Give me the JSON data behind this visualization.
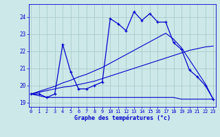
{
  "xlabel": "Graphe des températures (°c)",
  "bg_color": "#cce8e8",
  "grid_color": "#aacccc",
  "line_color": "#0000cc",
  "hours": [
    0,
    1,
    2,
    3,
    4,
    5,
    6,
    7,
    8,
    9,
    10,
    11,
    12,
    13,
    14,
    15,
    16,
    17,
    18,
    19,
    20,
    21,
    22,
    23
  ],
  "temp_actual": [
    19.5,
    19.5,
    19.3,
    19.5,
    22.4,
    20.8,
    19.8,
    19.8,
    20.0,
    20.2,
    23.9,
    23.6,
    23.2,
    24.3,
    23.8,
    24.2,
    23.7,
    23.7,
    22.5,
    22.1,
    20.9,
    20.5,
    20.0,
    19.2
  ],
  "temp_min": [
    19.5,
    19.4,
    19.3,
    19.3,
    19.3,
    19.3,
    19.3,
    19.3,
    19.3,
    19.3,
    19.3,
    19.3,
    19.3,
    19.3,
    19.3,
    19.3,
    19.3,
    19.3,
    19.3,
    19.2,
    19.2,
    19.2,
    19.2,
    19.2
  ],
  "trend_low": [
    19.5,
    19.6,
    19.7,
    19.8,
    19.9,
    19.95,
    20.05,
    20.15,
    20.25,
    20.4,
    20.55,
    20.7,
    20.85,
    21.0,
    21.15,
    21.3,
    21.45,
    21.6,
    21.75,
    21.9,
    22.05,
    22.15,
    22.25,
    22.3
  ],
  "trend_high": [
    19.5,
    19.65,
    19.8,
    19.95,
    20.15,
    20.3,
    20.5,
    20.65,
    20.85,
    21.05,
    21.3,
    21.55,
    21.8,
    22.05,
    22.3,
    22.55,
    22.8,
    23.05,
    22.7,
    22.2,
    21.5,
    20.8,
    20.1,
    19.2
  ],
  "ylim": [
    18.75,
    24.75
  ],
  "yticks": [
    19,
    20,
    21,
    22,
    23,
    24
  ],
  "xticks": [
    0,
    1,
    2,
    3,
    4,
    5,
    6,
    7,
    8,
    9,
    10,
    11,
    12,
    13,
    14,
    15,
    16,
    17,
    18,
    19,
    20,
    21,
    22,
    23
  ],
  "xlim": [
    -0.3,
    23.3
  ]
}
